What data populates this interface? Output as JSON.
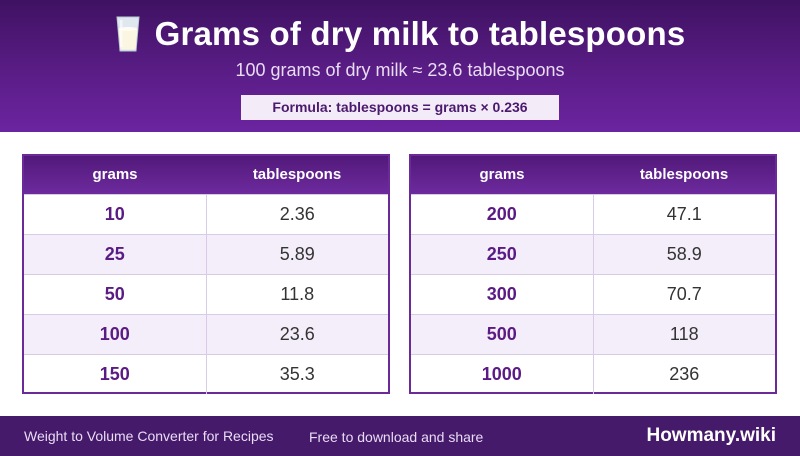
{
  "header": {
    "title": "Grams of dry milk to tablespoons",
    "icon": "milk-glass-icon",
    "subtitle": "100 grams of dry milk ≈ 23.6 tablespoons",
    "formula": "Formula: tablespoons = grams × 0.236"
  },
  "tables": [
    {
      "headers": [
        "grams",
        "tablespoons"
      ],
      "rows": [
        [
          "10",
          "2.36"
        ],
        [
          "25",
          "5.89"
        ],
        [
          "50",
          "11.8"
        ],
        [
          "100",
          "23.6"
        ],
        [
          "150",
          "35.3"
        ]
      ]
    },
    {
      "headers": [
        "grams",
        "tablespoons"
      ],
      "rows": [
        [
          "200",
          "47.1"
        ],
        [
          "250",
          "58.9"
        ],
        [
          "300",
          "70.7"
        ],
        [
          "500",
          "118"
        ],
        [
          "1000",
          "236"
        ]
      ]
    }
  ],
  "footer": {
    "left": "Weight to Volume Converter for Recipes",
    "mid": "Free to download and share",
    "brand": "Howmany.wiki"
  },
  "colors": {
    "accent": "#5a1d86",
    "row_alt": "#f4eefa"
  }
}
